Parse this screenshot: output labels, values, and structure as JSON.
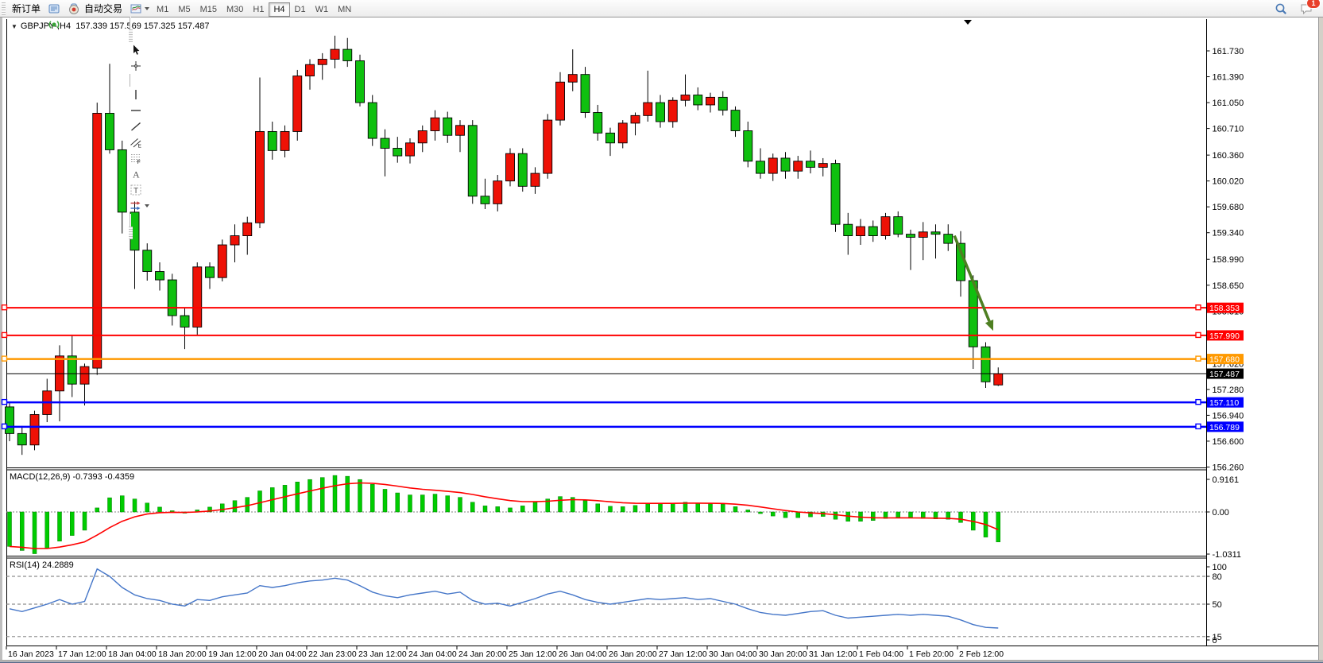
{
  "toolbar": {
    "new_order_label": "新订单",
    "autotrade_label": "自动交易",
    "icons_left": [
      {
        "name": "ea-wizard-icon",
        "glyph": "diamond"
      },
      {
        "name": "market-news-icon",
        "glyph": "news"
      },
      {
        "name": "signals-icon",
        "glyph": "signal"
      }
    ],
    "icon_groups": [
      [
        {
          "name": "bar-chart-type-icon",
          "glyph": "bars"
        },
        {
          "name": "candlestick-chart-type-icon",
          "glyph": "candles"
        },
        {
          "name": "line-chart-type-icon",
          "glyph": "linechart"
        }
      ],
      [
        {
          "name": "zoom-in-icon",
          "glyph": "zoomin"
        },
        {
          "name": "zoom-out-icon",
          "glyph": "zoomout"
        },
        {
          "name": "tile-windows-icon",
          "glyph": "tiles"
        }
      ],
      [
        {
          "name": "indicator-window-icon",
          "glyph": "wnd1"
        },
        {
          "name": "indicator-window-alt-icon",
          "glyph": "wnd2"
        }
      ],
      [
        {
          "name": "add-indicator-icon",
          "glyph": "plus",
          "caret": true
        },
        {
          "name": "period-menu-icon",
          "glyph": "clock",
          "caret": true
        },
        {
          "name": "template-icon",
          "glyph": "template",
          "caret": true
        }
      ],
      [
        {
          "name": "cursor-icon",
          "glyph": "cursor"
        },
        {
          "name": "crosshair-icon",
          "glyph": "crosshair"
        }
      ],
      [
        {
          "name": "vertical-line-icon",
          "glyph": "vline"
        },
        {
          "name": "horizontal-line-icon",
          "glyph": "hline"
        },
        {
          "name": "trendline-icon",
          "glyph": "tline"
        },
        {
          "name": "equidistant-channel-icon",
          "glyph": "channel"
        },
        {
          "name": "fibonacci-icon",
          "glyph": "fibo"
        },
        {
          "name": "text-icon",
          "glyph": "textA"
        },
        {
          "name": "text-label-icon",
          "glyph": "textT"
        },
        {
          "name": "shapes-icon",
          "glyph": "shapes",
          "caret": true
        }
      ]
    ],
    "timeframes": [
      {
        "label": "M1"
      },
      {
        "label": "M5"
      },
      {
        "label": "M15"
      },
      {
        "label": "M30"
      },
      {
        "label": "H1"
      },
      {
        "label": "H4",
        "active": true
      },
      {
        "label": "D1"
      },
      {
        "label": "W1"
      },
      {
        "label": "MN"
      }
    ],
    "search_icon": "search-icon",
    "notification_badge": "1"
  },
  "chart": {
    "title_symbol": "GBPJPY-,H4",
    "title_ohlc": "157.339 157.569 157.325 157.487",
    "macd_label": "MACD(12,26,9)",
    "macd_values": "-0.7393 -0.4359",
    "rsi_label": "RSI(14)",
    "rsi_value": "24.2889"
  },
  "chart_data": [
    {
      "type": "candlestick",
      "symbol": "GBPJPY-",
      "timeframe": "H4",
      "title": "GBPJPY-,H4 157.339 157.569 157.325 157.487",
      "current_bar": {
        "open": 157.339,
        "high": 157.569,
        "low": 157.325,
        "close": 157.487
      },
      "bull_color": "#ee1106",
      "bear_color": "#0fc00f",
      "ylim": [
        156.26,
        162.15
      ],
      "y_ticks": [
        161.73,
        161.39,
        161.05,
        160.71,
        160.36,
        160.02,
        159.68,
        159.34,
        158.99,
        158.65,
        158.31,
        157.97,
        157.62,
        157.28,
        156.94,
        156.6,
        156.26
      ],
      "x_labels": [
        "16 Jan 2023",
        "17 Jan 12:00",
        "18 Jan 04:00",
        "18 Jan 20:00",
        "19 Jan 12:00",
        "20 Jan 04:00",
        "22 Jan 23:00",
        "23 Jan 12:00",
        "24 Jan 04:00",
        "24 Jan 20:00",
        "25 Jan 12:00",
        "26 Jan 04:00",
        "26 Jan 20:00",
        "27 Jan 12:00",
        "30 Jan 04:00",
        "30 Jan 20:00",
        "31 Jan 12:00",
        "1 Feb 04:00",
        "1 Feb 20:00",
        "2 Feb 12:00"
      ],
      "hlines": [
        {
          "price": 158.353,
          "label": "158.353",
          "color": "#ff0000",
          "width": 2
        },
        {
          "price": 157.99,
          "label": "157.990",
          "color": "#ff0000",
          "width": 2
        },
        {
          "price": 157.68,
          "label": "157.680",
          "color": "#ff9900",
          "width": 2.5
        },
        {
          "price": 157.487,
          "label": "157.487",
          "color": "#000000",
          "width": 1
        },
        {
          "price": 157.11,
          "label": "157.110",
          "color": "#0000ff",
          "width": 2.5
        },
        {
          "price": 156.789,
          "label": "156.789",
          "color": "#0000ff",
          "width": 2.5
        }
      ],
      "annotations": [
        {
          "type": "arrow",
          "name": "sell-arrow",
          "color": "#4e7f22",
          "from_x_bar": 75.5,
          "from_price": 159.3,
          "to_x_bar": 78.6,
          "to_price": 158.05
        }
      ],
      "ohlc": [
        [
          157.05,
          157.1,
          156.6,
          156.7
        ],
        [
          156.7,
          156.8,
          156.42,
          156.55
        ],
        [
          156.55,
          157.0,
          156.48,
          156.95
        ],
        [
          156.95,
          157.42,
          156.85,
          157.26
        ],
        [
          157.26,
          157.86,
          156.86,
          157.72
        ],
        [
          157.72,
          158.0,
          157.18,
          157.35
        ],
        [
          157.35,
          157.62,
          157.07,
          157.58
        ],
        [
          157.56,
          161.05,
          157.47,
          160.91
        ],
        [
          160.91,
          161.56,
          160.38,
          160.43
        ],
        [
          160.43,
          160.55,
          159.33,
          159.61
        ],
        [
          159.61,
          159.75,
          158.6,
          159.11
        ],
        [
          159.11,
          159.2,
          158.71,
          158.83
        ],
        [
          158.83,
          158.95,
          158.58,
          158.72
        ],
        [
          158.72,
          158.8,
          158.12,
          158.25
        ],
        [
          158.25,
          158.35,
          157.81,
          158.1
        ],
        [
          158.1,
          158.95,
          157.99,
          158.89
        ],
        [
          158.89,
          158.95,
          158.6,
          158.75
        ],
        [
          158.75,
          159.25,
          158.7,
          159.18
        ],
        [
          159.18,
          159.45,
          158.95,
          159.3
        ],
        [
          159.3,
          159.55,
          159.05,
          159.47
        ],
        [
          159.47,
          161.38,
          159.4,
          160.67
        ],
        [
          160.67,
          160.8,
          160.3,
          160.42
        ],
        [
          160.42,
          160.75,
          160.33,
          160.67
        ],
        [
          160.67,
          161.48,
          160.55,
          161.4
        ],
        [
          161.4,
          161.62,
          161.22,
          161.55
        ],
        [
          161.55,
          161.7,
          161.35,
          161.62
        ],
        [
          161.62,
          161.93,
          161.5,
          161.75
        ],
        [
          161.75,
          161.9,
          161.52,
          161.6
        ],
        [
          161.6,
          161.68,
          161.0,
          161.05
        ],
        [
          161.05,
          161.15,
          160.48,
          160.58
        ],
        [
          160.58,
          160.7,
          160.08,
          160.45
        ],
        [
          160.45,
          160.6,
          160.26,
          160.35
        ],
        [
          160.35,
          160.58,
          160.25,
          160.52
        ],
        [
          160.52,
          160.75,
          160.4,
          160.68
        ],
        [
          160.68,
          160.95,
          160.55,
          160.85
        ],
        [
          160.85,
          160.93,
          160.52,
          160.62
        ],
        [
          160.62,
          160.82,
          160.4,
          160.75
        ],
        [
          160.75,
          160.82,
          159.72,
          159.82
        ],
        [
          159.82,
          160.05,
          159.65,
          159.72
        ],
        [
          159.72,
          160.1,
          159.62,
          160.02
        ],
        [
          160.02,
          160.45,
          159.95,
          160.38
        ],
        [
          160.38,
          160.45,
          159.88,
          159.95
        ],
        [
          159.95,
          160.2,
          159.85,
          160.12
        ],
        [
          160.12,
          160.9,
          160.05,
          160.82
        ],
        [
          160.82,
          161.45,
          160.75,
          161.32
        ],
        [
          161.32,
          161.75,
          161.2,
          161.42
        ],
        [
          161.42,
          161.52,
          160.85,
          160.92
        ],
        [
          160.92,
          161.02,
          160.55,
          160.65
        ],
        [
          160.65,
          160.72,
          160.35,
          160.52
        ],
        [
          160.52,
          160.82,
          160.45,
          160.78
        ],
        [
          160.78,
          160.92,
          160.62,
          160.88
        ],
        [
          160.88,
          161.47,
          160.8,
          161.05
        ],
        [
          161.05,
          161.15,
          160.72,
          160.8
        ],
        [
          160.8,
          161.12,
          160.72,
          161.08
        ],
        [
          161.08,
          161.42,
          161.0,
          161.15
        ],
        [
          161.15,
          161.25,
          160.95,
          161.02
        ],
        [
          161.02,
          161.18,
          160.92,
          161.12
        ],
        [
          161.12,
          161.2,
          160.88,
          160.95
        ],
        [
          160.95,
          161.0,
          160.6,
          160.68
        ],
        [
          160.68,
          160.8,
          160.2,
          160.28
        ],
        [
          160.28,
          160.45,
          160.05,
          160.12
        ],
        [
          160.12,
          160.38,
          160.02,
          160.32
        ],
        [
          160.32,
          160.4,
          160.05,
          160.15
        ],
        [
          160.15,
          160.35,
          160.05,
          160.28
        ],
        [
          160.28,
          160.42,
          160.12,
          160.2
        ],
        [
          160.2,
          160.32,
          160.08,
          160.25
        ],
        [
          160.25,
          160.3,
          159.35,
          159.45
        ],
        [
          159.45,
          159.6,
          159.05,
          159.3
        ],
        [
          159.3,
          159.52,
          159.18,
          159.42
        ],
        [
          159.42,
          159.5,
          159.22,
          159.3
        ],
        [
          159.3,
          159.6,
          159.25,
          159.55
        ],
        [
          159.55,
          159.62,
          159.28,
          159.32
        ],
        [
          159.32,
          159.38,
          158.85,
          159.28
        ],
        [
          159.28,
          159.48,
          158.98,
          159.35
        ],
        [
          159.35,
          159.45,
          159.0,
          159.32
        ],
        [
          159.32,
          159.45,
          159.1,
          159.2
        ],
        [
          159.2,
          159.36,
          158.5,
          158.71
        ],
        [
          158.71,
          158.78,
          157.55,
          157.84
        ],
        [
          157.84,
          157.9,
          157.3,
          157.38
        ],
        [
          157.339,
          157.569,
          157.325,
          157.487
        ]
      ]
    },
    {
      "type": "bar",
      "name": "MACD(12,26,9)",
      "macd_value": -0.7393,
      "signal_value": -0.4359,
      "range": [
        -1.0311,
        0.9161
      ],
      "axis_labels": [
        "0.9161",
        "0.00",
        "-1.0311"
      ],
      "histogram_color": "#00cc00",
      "signal_color": "#ff0000",
      "values": [
        -0.85,
        -0.95,
        -1.03,
        -0.9,
        -0.72,
        -0.58,
        -0.45,
        0.1,
        0.35,
        0.4,
        0.32,
        0.22,
        0.12,
        0.03,
        -0.03,
        0.05,
        0.12,
        0.2,
        0.28,
        0.36,
        0.52,
        0.6,
        0.66,
        0.74,
        0.8,
        0.85,
        0.9,
        0.88,
        0.8,
        0.68,
        0.56,
        0.47,
        0.42,
        0.42,
        0.44,
        0.4,
        0.36,
        0.24,
        0.15,
        0.13,
        0.1,
        0.15,
        0.24,
        0.32,
        0.38,
        0.36,
        0.28,
        0.2,
        0.14,
        0.13,
        0.16,
        0.2,
        0.21,
        0.22,
        0.24,
        0.22,
        0.2,
        0.19,
        0.13,
        0.05,
        -0.04,
        -0.1,
        -0.14,
        -0.14,
        -0.12,
        -0.11,
        -0.18,
        -0.23,
        -0.23,
        -0.21,
        -0.16,
        -0.14,
        -0.15,
        -0.16,
        -0.17,
        -0.18,
        -0.26,
        -0.45,
        -0.62,
        -0.7393
      ],
      "signal": [
        -0.85,
        -0.87,
        -0.902,
        -0.902,
        -0.866,
        -0.809,
        -0.737,
        -0.57,
        -0.386,
        -0.229,
        -0.119,
        -0.051,
        -0.017,
        -0.008,
        -0.012,
        0.0,
        0.024,
        0.059,
        0.103,
        0.155,
        0.228,
        0.302,
        0.374,
        0.447,
        0.518,
        0.584,
        0.647,
        0.694,
        0.715,
        0.708,
        0.678,
        0.637,
        0.593,
        0.559,
        0.535,
        0.508,
        0.478,
        0.431,
        0.375,
        0.326,
        0.281,
        0.254,
        0.252,
        0.265,
        0.288,
        0.303,
        0.298,
        0.278,
        0.251,
        0.227,
        0.213,
        0.211,
        0.211,
        0.212,
        0.218,
        0.218,
        0.214,
        0.209,
        0.193,
        0.165,
        0.124,
        0.079,
        0.035,
        0.0,
        -0.024,
        -0.041,
        -0.069,
        -0.101,
        -0.127,
        -0.144,
        -0.147,
        -0.146,
        -0.147,
        -0.149,
        -0.153,
        -0.159,
        -0.179,
        -0.233,
        -0.31,
        -0.4359
      ]
    },
    {
      "type": "line",
      "name": "RSI(14)",
      "value": 24.2889,
      "range": [
        0,
        100
      ],
      "levels": [
        80,
        50,
        15
      ],
      "axis_labels": [
        "100",
        "80",
        "50",
        "15",
        "0"
      ],
      "line_color": "#4576c8",
      "values": [
        45,
        42,
        46,
        50,
        55,
        50,
        53,
        88,
        80,
        68,
        60,
        56,
        54,
        50,
        48,
        55,
        54,
        58,
        60,
        62,
        70,
        68,
        70,
        73,
        75,
        76,
        78,
        76,
        70,
        63,
        59,
        57,
        60,
        62,
        64,
        61,
        63,
        54,
        50,
        51,
        48,
        52,
        56,
        61,
        64,
        60,
        55,
        52,
        50,
        52,
        54,
        56,
        55,
        56,
        57,
        55,
        56,
        53,
        50,
        45,
        41,
        39,
        38,
        40,
        42,
        43,
        38,
        35,
        36,
        37,
        38,
        39,
        38,
        39,
        38,
        37,
        33,
        28,
        25,
        24.2889
      ]
    }
  ]
}
